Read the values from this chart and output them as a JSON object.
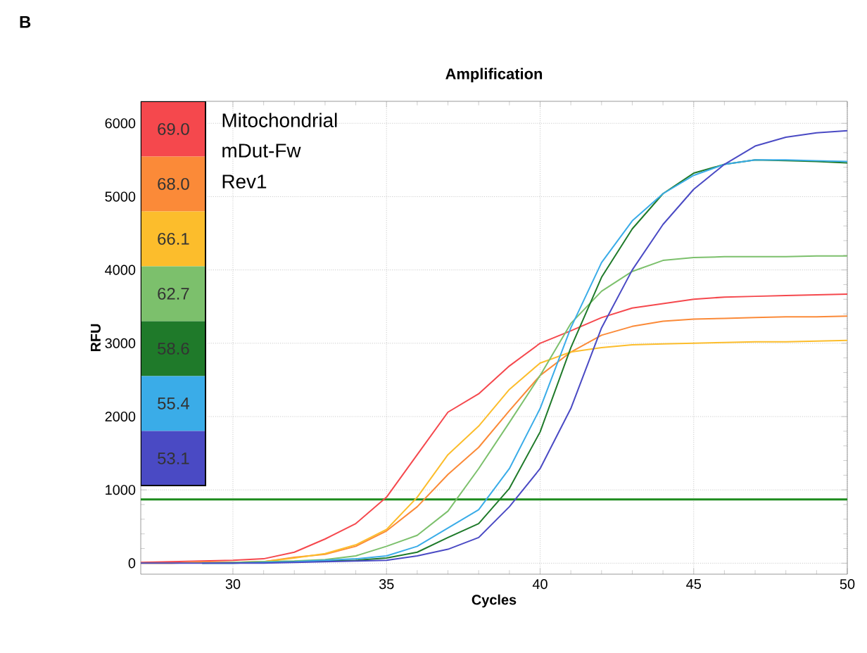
{
  "chart_data": {
    "type": "line",
    "title": "Amplification",
    "xlabel": "Cycles",
    "ylabel": "RFU",
    "annotations": [
      "B",
      "Mitochondrial",
      "mDut-Fw",
      "Rev1"
    ],
    "x": [
      27,
      28,
      29,
      30,
      31,
      32,
      33,
      34,
      35,
      36,
      37,
      38,
      39,
      40,
      41,
      42,
      43,
      44,
      45,
      46,
      47,
      48,
      49,
      50
    ],
    "xlim": [
      27,
      50
    ],
    "ylim": [
      -150,
      6300
    ],
    "xticks": [
      30,
      35,
      40,
      45,
      50
    ],
    "yticks": [
      0,
      1000,
      2000,
      3000,
      4000,
      5000,
      6000
    ],
    "grid": true,
    "legend": "top left",
    "marker": "none",
    "line_style": "solid",
    "ref_lines": [
      {
        "axis": "y",
        "value": 870,
        "color": "#1e8c1e"
      }
    ],
    "series": [
      {
        "name": "69.0",
        "color": "#f5484d",
        "values": [
          10,
          20,
          30,
          40,
          60,
          150,
          330,
          540,
          900,
          1480,
          2060,
          2310,
          2690,
          3000,
          3170,
          3350,
          3480,
          3540,
          3600,
          3630,
          3640,
          3650,
          3660,
          3670
        ]
      },
      {
        "name": "68.0",
        "color": "#fb8a38",
        "values": [
          0,
          0,
          10,
          10,
          20,
          80,
          120,
          230,
          440,
          770,
          1210,
          1580,
          2080,
          2560,
          2880,
          3110,
          3230,
          3300,
          3330,
          3340,
          3350,
          3360,
          3360,
          3370
        ]
      },
      {
        "name": "66.1",
        "color": "#fcbd2c",
        "values": [
          0,
          0,
          10,
          10,
          20,
          70,
          130,
          250,
          460,
          900,
          1480,
          1870,
          2370,
          2730,
          2880,
          2940,
          2980,
          2990,
          3000,
          3010,
          3020,
          3020,
          3030,
          3040
        ]
      },
      {
        "name": "62.7",
        "color": "#7cc06c",
        "values": [
          null,
          null,
          0,
          10,
          20,
          30,
          50,
          100,
          230,
          380,
          710,
          1290,
          1920,
          2560,
          3270,
          3710,
          3980,
          4130,
          4170,
          4180,
          4180,
          4180,
          4190,
          4190
        ]
      },
      {
        "name": "58.6",
        "color": "#1f7a2a",
        "values": [
          null,
          null,
          0,
          0,
          10,
          20,
          30,
          40,
          70,
          150,
          350,
          540,
          1020,
          1790,
          2940,
          3900,
          4560,
          5040,
          5320,
          5440,
          5500,
          5490,
          5480,
          5460
        ]
      },
      {
        "name": "55.4",
        "color": "#3aace8",
        "values": [
          null,
          null,
          0,
          0,
          10,
          20,
          40,
          60,
          100,
          230,
          480,
          730,
          1290,
          2110,
          3210,
          4100,
          4670,
          5040,
          5290,
          5440,
          5500,
          5500,
          5490,
          5480
        ]
      },
      {
        "name": "53.1",
        "color": "#4a4ac4",
        "values": [
          0,
          0,
          0,
          0,
          0,
          10,
          20,
          30,
          40,
          100,
          190,
          350,
          770,
          1290,
          2110,
          3210,
          4000,
          4620,
          5100,
          5440,
          5690,
          5810,
          5870,
          5900
        ]
      }
    ]
  }
}
